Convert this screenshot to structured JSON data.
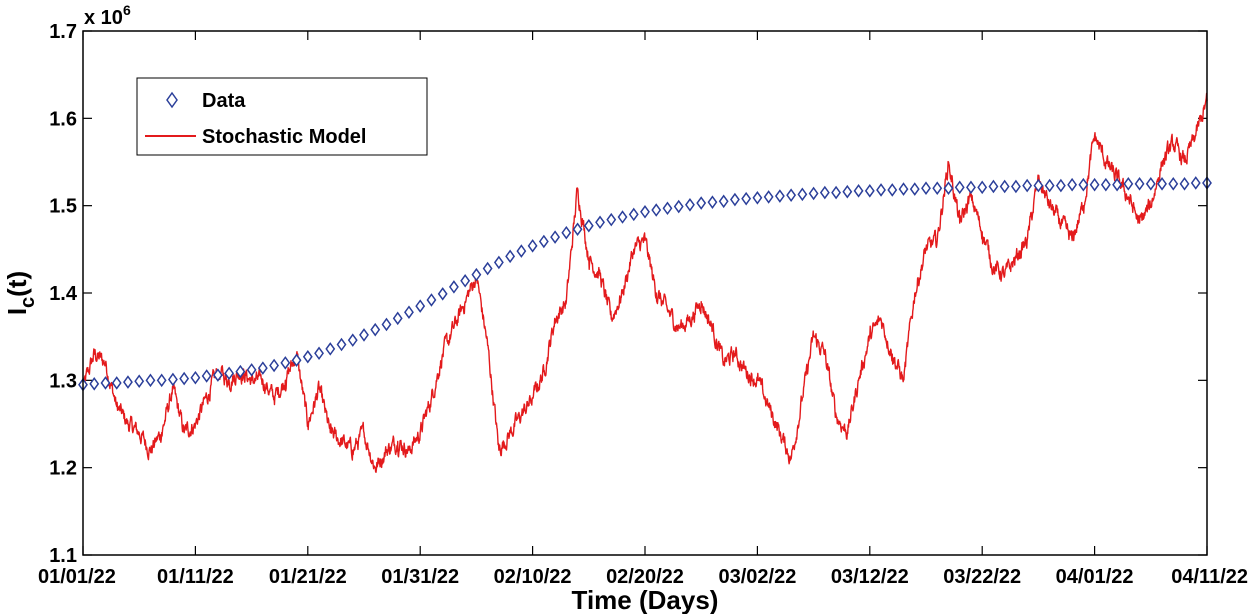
{
  "chart_data": {
    "type": "line",
    "xlabel": "Time (Days)",
    "ylabel_main": "I",
    "ylabel_sub": "c",
    "ylabel_tail": "(t)",
    "y_multiplier_base": "x 10",
    "y_multiplier_exp": "6",
    "xlim": [
      0,
      100
    ],
    "ylim": [
      1.1,
      1.7
    ],
    "x_ticks": [
      0,
      10,
      20,
      30,
      40,
      50,
      60,
      70,
      80,
      90,
      100
    ],
    "x_tick_labels": [
      "01/01/22",
      "01/11/22",
      "01/21/22",
      "01/31/22",
      "02/10/22",
      "02/20/22",
      "03/02/22",
      "03/12/22",
      "03/22/22",
      "04/01/22",
      "04/11/22"
    ],
    "y_ticks": [
      1.1,
      1.2,
      1.3,
      1.4,
      1.5,
      1.6,
      1.7
    ],
    "y_tick_labels": [
      "1.1",
      "1.2",
      "1.3",
      "1.4",
      "1.5",
      "1.6",
      "1.7"
    ],
    "legend": {
      "position": "top-left",
      "entries": [
        "Data",
        "Stochastic Model"
      ]
    },
    "series": [
      {
        "name": "Data",
        "style": "diamond-markers",
        "color": "#2b3f9a",
        "x": [
          0,
          1,
          2,
          3,
          4,
          5,
          6,
          7,
          8,
          9,
          10,
          11,
          12,
          13,
          14,
          15,
          16,
          17,
          18,
          19,
          20,
          21,
          22,
          23,
          24,
          25,
          26,
          27,
          28,
          29,
          30,
          31,
          32,
          33,
          34,
          35,
          36,
          37,
          38,
          39,
          40,
          41,
          42,
          43,
          44,
          45,
          46,
          47,
          48,
          49,
          50,
          51,
          52,
          53,
          54,
          55,
          56,
          57,
          58,
          59,
          60,
          61,
          62,
          63,
          64,
          65,
          66,
          67,
          68,
          69,
          70,
          71,
          72,
          73,
          74,
          75,
          76,
          77,
          78,
          79,
          80,
          81,
          82,
          83,
          84,
          85,
          86,
          87,
          88,
          89,
          90,
          91,
          92,
          93,
          94,
          95,
          96,
          97,
          98,
          99,
          100
        ],
        "y": [
          1.295,
          1.296,
          1.297,
          1.297,
          1.298,
          1.299,
          1.3,
          1.3,
          1.301,
          1.302,
          1.303,
          1.305,
          1.306,
          1.308,
          1.31,
          1.312,
          1.314,
          1.317,
          1.32,
          1.323,
          1.327,
          1.331,
          1.336,
          1.341,
          1.346,
          1.352,
          1.358,
          1.364,
          1.371,
          1.378,
          1.385,
          1.392,
          1.399,
          1.407,
          1.414,
          1.421,
          1.428,
          1.435,
          1.442,
          1.448,
          1.454,
          1.459,
          1.464,
          1.469,
          1.473,
          1.477,
          1.481,
          1.484,
          1.487,
          1.49,
          1.493,
          1.495,
          1.497,
          1.499,
          1.501,
          1.503,
          1.504,
          1.505,
          1.507,
          1.508,
          1.509,
          1.51,
          1.511,
          1.512,
          1.513,
          1.514,
          1.515,
          1.515,
          1.516,
          1.517,
          1.517,
          1.518,
          1.518,
          1.519,
          1.519,
          1.52,
          1.52,
          1.52,
          1.521,
          1.521,
          1.521,
          1.522,
          1.522,
          1.522,
          1.523,
          1.523,
          1.523,
          1.523,
          1.524,
          1.524,
          1.524,
          1.524,
          1.524,
          1.525,
          1.525,
          1.525,
          1.525,
          1.525,
          1.525,
          1.526,
          1.526
        ]
      },
      {
        "name": "Stochastic Model",
        "style": "line",
        "color": "#e31a1c",
        "x": [
          0,
          1,
          2,
          3,
          4,
          5,
          6,
          7,
          8,
          9,
          10,
          11,
          12,
          13,
          14,
          15,
          16,
          17,
          18,
          19,
          20,
          21,
          22,
          23,
          24,
          25,
          26,
          27,
          28,
          29,
          30,
          31,
          32,
          33,
          34,
          35,
          36,
          37,
          38,
          39,
          40,
          41,
          42,
          43,
          44,
          45,
          46,
          47,
          48,
          49,
          50,
          51,
          52,
          53,
          54,
          55,
          56,
          57,
          58,
          59,
          60,
          61,
          62,
          63,
          64,
          65,
          66,
          67,
          68,
          69,
          70,
          71,
          72,
          73,
          74,
          75,
          76,
          77,
          78,
          79,
          80,
          81,
          82,
          83,
          84,
          85,
          86,
          87,
          88,
          89,
          90,
          91,
          92,
          93,
          94,
          95,
          96,
          97,
          98,
          99,
          100
        ],
        "y": [
          1.29,
          1.33,
          1.32,
          1.27,
          1.25,
          1.24,
          1.22,
          1.24,
          1.29,
          1.24,
          1.25,
          1.28,
          1.31,
          1.3,
          1.31,
          1.3,
          1.3,
          1.28,
          1.3,
          1.33,
          1.25,
          1.29,
          1.24,
          1.23,
          1.22,
          1.24,
          1.2,
          1.22,
          1.23,
          1.22,
          1.24,
          1.28,
          1.33,
          1.36,
          1.39,
          1.42,
          1.34,
          1.22,
          1.24,
          1.26,
          1.28,
          1.31,
          1.37,
          1.39,
          1.52,
          1.44,
          1.42,
          1.37,
          1.4,
          1.45,
          1.46,
          1.4,
          1.38,
          1.36,
          1.37,
          1.39,
          1.36,
          1.32,
          1.33,
          1.31,
          1.3,
          1.27,
          1.24,
          1.21,
          1.28,
          1.35,
          1.33,
          1.26,
          1.24,
          1.3,
          1.35,
          1.37,
          1.33,
          1.3,
          1.4,
          1.45,
          1.46,
          1.55,
          1.48,
          1.51,
          1.47,
          1.43,
          1.42,
          1.44,
          1.46,
          1.53,
          1.5,
          1.48,
          1.46,
          1.5,
          1.58,
          1.55,
          1.53,
          1.51,
          1.48,
          1.5,
          1.55,
          1.57,
          1.55,
          1.58,
          1.62
        ]
      }
    ]
  }
}
